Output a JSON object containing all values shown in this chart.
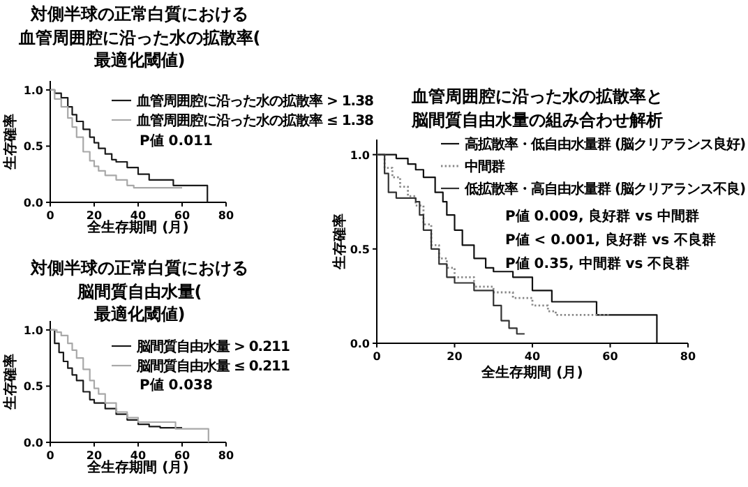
{
  "chart_data": [
    {
      "type": "step",
      "title": "対側半球の正常白質における",
      "subtitle": "血管周囲腔に沿った水の拡散率(最適化閾値)",
      "xlabel": "全生存期間 (月)",
      "ylabel": "生存確率",
      "xlim": [
        0,
        80
      ],
      "xticks": [
        0,
        20,
        40,
        60,
        80
      ],
      "ylim": [
        0,
        1.08
      ],
      "yticks": [
        {
          "value": 0,
          "label": "0.0"
        },
        {
          "value": 0.5,
          "label": "0.5"
        },
        {
          "value": 1,
          "label": "1.0"
        }
      ],
      "legend": "top right",
      "annotations": [
        "P値 0.011"
      ],
      "series": [
        {
          "name": "血管周囲腔に沿った水の拡散率 > 1.38",
          "color": "#1a1a1a",
          "x": [
            0,
            2,
            5,
            8,
            10,
            12,
            15,
            18,
            20,
            22,
            25,
            28,
            30,
            35,
            40,
            45,
            56,
            60,
            71,
            71.5
          ],
          "values": [
            1.0,
            0.97,
            0.93,
            0.85,
            0.78,
            0.72,
            0.65,
            0.58,
            0.53,
            0.48,
            0.43,
            0.38,
            0.36,
            0.31,
            0.25,
            0.2,
            0.15,
            0.15,
            0.15,
            0
          ]
        },
        {
          "name": "血管周囲腔に沿った水の拡散率 ≤ 1.38",
          "color": "#a8a8a8",
          "x": [
            0,
            2,
            5,
            8,
            10,
            12,
            15,
            18,
            20,
            22,
            25,
            30,
            35,
            38,
            45,
            60
          ],
          "values": [
            1.0,
            0.92,
            0.85,
            0.75,
            0.67,
            0.58,
            0.45,
            0.37,
            0.32,
            0.28,
            0.24,
            0.2,
            0.15,
            0.13,
            0.13,
            0.13
          ]
        }
      ]
    },
    {
      "type": "step",
      "title": "対側半球の正常白質における",
      "subtitle": "脳間質自由水量(最適化閾値)",
      "xlabel": "全生存期間 (月)",
      "ylabel": "生存確率",
      "xlim": [
        0,
        80
      ],
      "xticks": [
        0,
        20,
        40,
        60,
        80
      ],
      "ylim": [
        0,
        1.08
      ],
      "yticks": [
        {
          "value": 0,
          "label": "0.0"
        },
        {
          "value": 0.5,
          "label": "0.5"
        },
        {
          "value": 1,
          "label": "1.0"
        }
      ],
      "legend": "top right",
      "annotations": [
        "P値 0.038"
      ],
      "series": [
        {
          "name": "脳間質自由水量 > 0.211",
          "color": "#1a1a1a",
          "x": [
            0,
            2,
            4,
            6,
            8,
            10,
            12,
            15,
            18,
            20,
            25,
            30,
            35,
            40,
            45,
            50,
            60
          ],
          "values": [
            1.0,
            0.88,
            0.8,
            0.72,
            0.66,
            0.6,
            0.55,
            0.45,
            0.38,
            0.35,
            0.3,
            0.25,
            0.2,
            0.16,
            0.14,
            0.13,
            0.13
          ]
        },
        {
          "name": "脳間質自由水量 ≤ 0.211",
          "color": "#a8a8a8",
          "x": [
            0,
            3,
            5,
            8,
            10,
            12,
            15,
            18,
            20,
            22,
            25,
            30,
            35,
            40,
            45,
            56,
            57,
            71,
            72
          ],
          "values": [
            1.0,
            0.98,
            0.95,
            0.88,
            0.82,
            0.75,
            0.65,
            0.55,
            0.48,
            0.43,
            0.35,
            0.27,
            0.22,
            0.18,
            0.18,
            0.18,
            0.12,
            0.12,
            0
          ]
        }
      ]
    },
    {
      "type": "step",
      "title": "血管周囲腔に沿った水の拡散率と",
      "subtitle": "脳間質自由水量の組み合わせ解析",
      "xlabel": "全生存期間 (月)",
      "ylabel": "生存確率",
      "xlim": [
        0,
        80
      ],
      "xticks": [
        0,
        20,
        40,
        60,
        80
      ],
      "ylim": [
        0,
        1.08
      ],
      "yticks": [
        {
          "value": 0,
          "label": "0.0"
        },
        {
          "value": 0.5,
          "label": "0.5"
        },
        {
          "value": 1,
          "label": "1.0"
        }
      ],
      "legend": "top right",
      "annotations": [
        "P値 0.009, 良好群 vs 中間群",
        "P値 < 0.001, 良好群 vs 不良群",
        "P値 0.35, 中間群 vs 不良群"
      ],
      "series": [
        {
          "name": "高拡散率・低自由水量群 (脳クリアランス良好)",
          "color": "#111111",
          "line_style": "solid",
          "x": [
            0,
            3,
            5,
            8,
            10,
            12,
            15,
            17,
            18,
            20,
            22,
            25,
            28,
            30,
            35,
            40,
            45,
            56,
            56.5,
            71,
            72
          ],
          "values": [
            1.0,
            1.0,
            0.98,
            0.95,
            0.92,
            0.88,
            0.8,
            0.75,
            0.68,
            0.6,
            0.52,
            0.45,
            0.4,
            0.38,
            0.35,
            0.28,
            0.22,
            0.22,
            0.15,
            0.15,
            0
          ]
        },
        {
          "name": "中間群",
          "color": "#888888",
          "line_style": "dotted",
          "x": [
            0,
            2,
            4,
            6,
            8,
            10,
            12,
            14,
            16,
            18,
            20,
            25,
            30,
            35,
            40,
            44,
            46,
            60
          ],
          "values": [
            1.0,
            0.93,
            0.88,
            0.83,
            0.78,
            0.73,
            0.63,
            0.52,
            0.45,
            0.4,
            0.35,
            0.3,
            0.27,
            0.24,
            0.2,
            0.17,
            0.15,
            0.15
          ]
        },
        {
          "name": "低拡散率・高自由水量群 (脳クリアランス不良)",
          "color": "#333333",
          "line_style": "solid",
          "x": [
            0,
            2,
            3,
            5,
            8,
            10,
            11,
            12,
            14,
            16,
            18,
            20,
            25,
            30,
            32,
            34,
            36,
            38
          ],
          "values": [
            1.0,
            0.9,
            0.8,
            0.77,
            0.77,
            0.75,
            0.68,
            0.6,
            0.5,
            0.42,
            0.35,
            0.32,
            0.28,
            0.2,
            0.12,
            0.08,
            0.05,
            0.05
          ]
        }
      ]
    }
  ]
}
